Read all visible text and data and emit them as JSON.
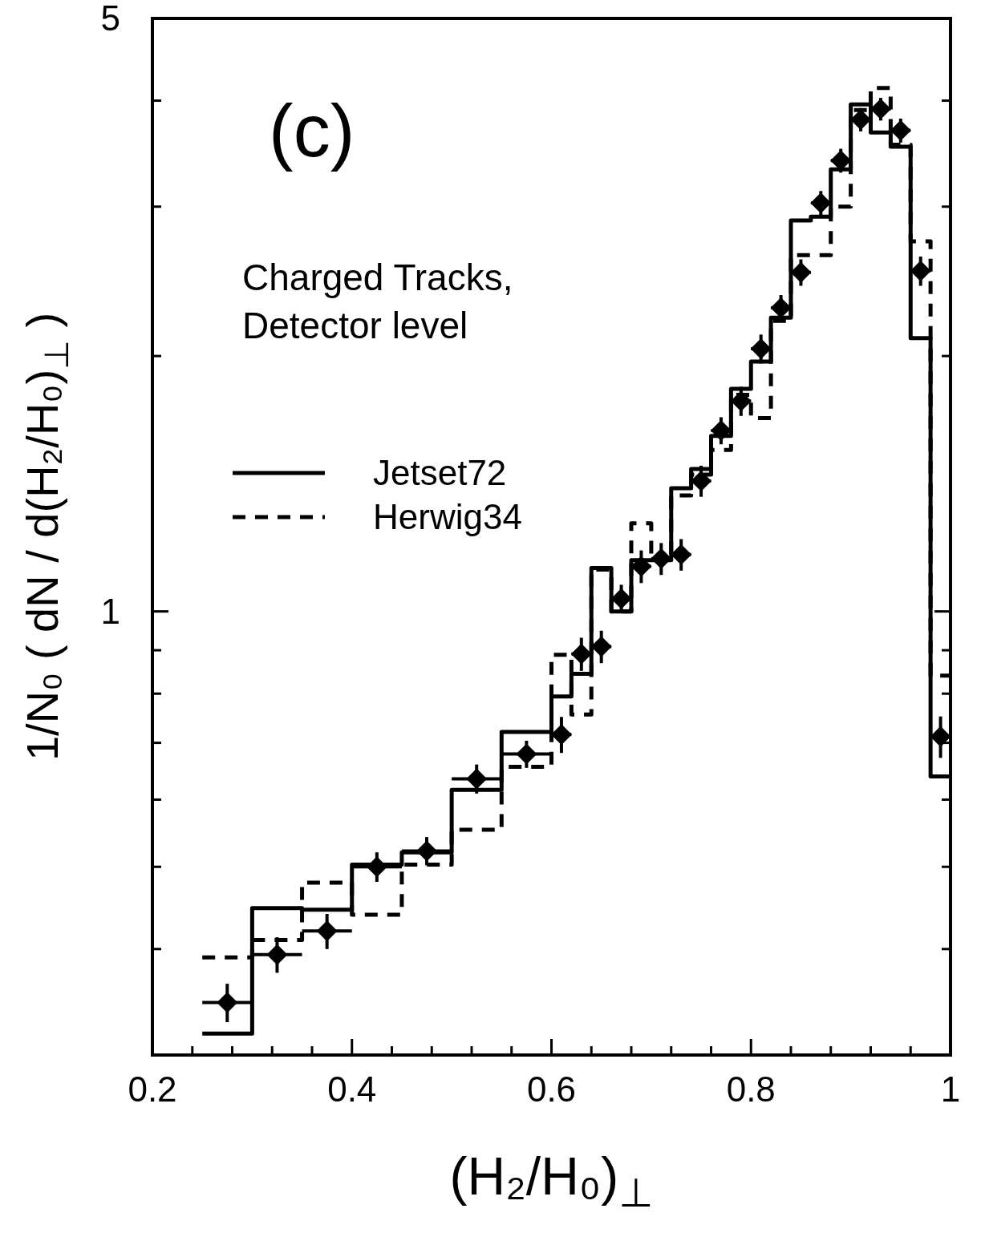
{
  "chart_data": {
    "type": "step",
    "xlabel": "(H₂/H₀)$_{⊥}$",
    "ylabel": "1/N₀ ( dN / d(H₂/H₀)$_{⊥}$ )",
    "annotations": [
      "(c)",
      "Charged Tracks,\nDetector level"
    ],
    "xlim": [
      0.2,
      1
    ],
    "xticks": [
      0.2,
      {
        "value": 0.24,
        "label": null
      },
      {
        "value": 0.28,
        "label": null
      },
      {
        "value": 0.32,
        "label": null
      },
      {
        "value": 0.36,
        "label": null
      },
      0.4,
      {
        "value": 0.44,
        "label": null
      },
      {
        "value": 0.48,
        "label": null
      },
      {
        "value": 0.52,
        "label": null
      },
      {
        "value": 0.56,
        "label": null
      },
      0.6,
      {
        "value": 0.64,
        "label": null
      },
      {
        "value": 0.68,
        "label": null
      },
      {
        "value": 0.72,
        "label": null
      },
      {
        "value": 0.76,
        "label": null
      },
      0.8,
      {
        "value": 0.84,
        "label": null
      },
      {
        "value": 0.88,
        "label": null
      },
      {
        "value": 0.92,
        "label": null
      },
      {
        "value": 0.96,
        "label": null
      },
      1
    ],
    "ylim": [
      0.3,
      5
    ],
    "yticks": [
      {
        "value": 0.4,
        "label": null
      },
      {
        "value": 0.5,
        "label": null
      },
      {
        "value": 0.6,
        "label": null
      },
      {
        "value": 0.7,
        "label": null
      },
      {
        "value": 0.8,
        "label": null
      },
      {
        "value": 0.9,
        "label": null
      },
      1,
      {
        "value": 2,
        "label": null
      },
      {
        "value": 3,
        "label": null
      },
      {
        "value": 4,
        "label": null
      },
      5
    ],
    "log": "y",
    "grid": false,
    "legend": "top left",
    "series": [
      {
        "name": "Jetset72",
        "color": "#000000",
        "line_style": "solid",
        "x": [
          0.25,
          0.3,
          0.35,
          0.4,
          0.45,
          0.5,
          0.55,
          0.6,
          0.62,
          0.64,
          0.66,
          0.68,
          0.7,
          0.72,
          0.74,
          0.76,
          0.78,
          0.8,
          0.82,
          0.84,
          0.86,
          0.88,
          0.9,
          0.92,
          0.94,
          0.96,
          0.98,
          1.0
        ],
        "values": [
          0.318,
          0.447,
          0.445,
          0.503,
          0.52,
          0.616,
          0.721,
          0.794,
          0.844,
          1.125,
          1.0,
          1.149,
          1.149,
          1.397,
          1.472,
          1.61,
          1.83,
          1.97,
          2.22,
          2.89,
          2.92,
          3.32,
          3.96,
          3.67,
          3.53,
          2.1,
          0.639,
          0.639
        ]
      },
      {
        "name": "Herwig34",
        "color": "#000000",
        "line_style": "dashed",
        "x": [
          0.25,
          0.3,
          0.35,
          0.4,
          0.45,
          0.5,
          0.55,
          0.6,
          0.62,
          0.64,
          0.66,
          0.68,
          0.7,
          0.72,
          0.74,
          0.76,
          0.78,
          0.8,
          0.82,
          0.84,
          0.86,
          0.88,
          0.9,
          0.92,
          0.94,
          0.96,
          0.98,
          1.0
        ],
        "values": [
          0.391,
          0.41,
          0.479,
          0.439,
          0.503,
          0.553,
          0.656,
          0.889,
          0.756,
          1.12,
          1.0,
          1.27,
          1.15,
          1.37,
          1.45,
          1.55,
          1.8,
          1.69,
          2.2,
          2.63,
          2.63,
          3.0,
          3.9,
          4.14,
          3.55,
          2.73,
          0.84,
          0.84
        ]
      },
      {
        "type": "scatter",
        "color": "#000000",
        "marker": "diamond",
        "x": [
          0.275,
          0.325,
          0.375,
          0.425,
          0.475,
          0.525,
          0.575,
          0.61,
          0.63,
          0.65,
          0.67,
          0.69,
          0.71,
          0.73,
          0.75,
          0.77,
          0.79,
          0.81,
          0.83,
          0.85,
          0.87,
          0.89,
          0.91,
          0.93,
          0.95,
          0.97,
          0.99
        ],
        "values": [
          0.346,
          0.394,
          0.42,
          0.5,
          0.522,
          0.635,
          0.679,
          0.716,
          0.891,
          0.909,
          1.035,
          1.13,
          1.154,
          1.167,
          1.425,
          1.634,
          1.77,
          2.04,
          2.28,
          2.51,
          3.03,
          3.4,
          3.8,
          3.91,
          3.69,
          2.52,
          0.712
        ],
        "errors": [
          0.018,
          0.019,
          0.02,
          0.02,
          0.02,
          0.025,
          0.025,
          0.035,
          0.04,
          0.04,
          0.04,
          0.05,
          0.05,
          0.05,
          0.06,
          0.06,
          0.07,
          0.08,
          0.08,
          0.09,
          0.1,
          0.11,
          0.12,
          0.12,
          0.12,
          0.1,
          0.04
        ],
        "xerrors": [
          0.025,
          0.025,
          0.025,
          0.025,
          0.025,
          0.025,
          0.025,
          0.01,
          0.01,
          0.01,
          0.01,
          0.01,
          0.01,
          0.01,
          0.01,
          0.01,
          0.01,
          0.01,
          0.01,
          0.01,
          0.01,
          0.01,
          0.01,
          0.01,
          0.01,
          0.01,
          0.01
        ]
      }
    ]
  }
}
